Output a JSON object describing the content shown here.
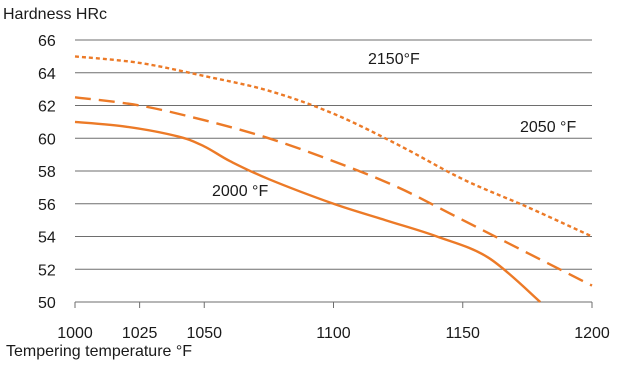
{
  "chart_data": {
    "type": "line",
    "title": "",
    "ylabel": "Hardness HRc",
    "xlabel": "Tempering  temperature °F",
    "xlim": [
      1000,
      1200
    ],
    "ylim": [
      50,
      66
    ],
    "x_ticks": [
      1000,
      1025,
      1050,
      1100,
      1150,
      1200
    ],
    "y_ticks": [
      50,
      52,
      54,
      56,
      58,
      60,
      62,
      64,
      66
    ],
    "grid": "horizontal",
    "line_color": "#EC7A27",
    "grid_color": "#6e6e6e",
    "series": [
      {
        "name": "2000 °F",
        "dash": "solid",
        "x": [
          1000,
          1020,
          1040,
          1050,
          1060,
          1075,
          1100,
          1120,
          1140,
          1160,
          1180
        ],
        "y": [
          61.0,
          60.7,
          60.1,
          59.5,
          58.6,
          57.5,
          56.0,
          55.0,
          54.0,
          52.7,
          50.0
        ]
      },
      {
        "name": "2050 °F",
        "dash": "long-dash",
        "x": [
          1000,
          1025,
          1050,
          1075,
          1100,
          1125,
          1150,
          1175,
          1200
        ],
        "y": [
          62.5,
          62.0,
          61.1,
          60.0,
          58.6,
          57.0,
          55.0,
          53.0,
          51.0
        ]
      },
      {
        "name": "2150°F",
        "dash": "short-dash",
        "x": [
          1000,
          1025,
          1050,
          1075,
          1100,
          1125,
          1150,
          1175,
          1200
        ],
        "y": [
          65.0,
          64.6,
          63.8,
          62.9,
          61.5,
          59.6,
          57.5,
          55.8,
          54.0
        ]
      }
    ]
  }
}
